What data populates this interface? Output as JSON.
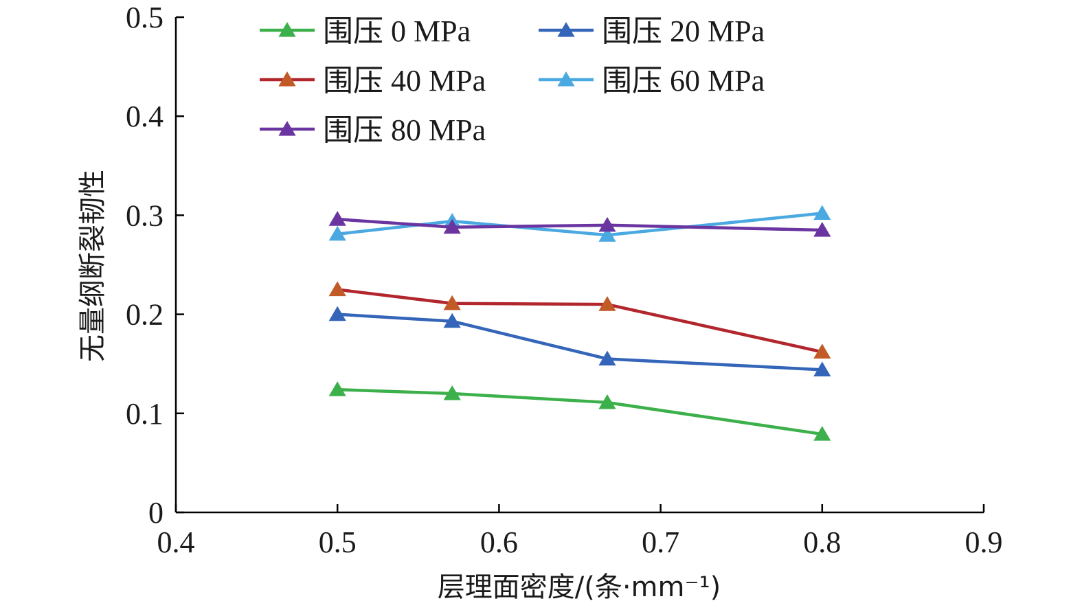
{
  "chart_data": {
    "type": "line",
    "xlabel": "层理面密度/(条·mm⁻¹)",
    "ylabel": "无量纲断裂韧性",
    "xlim": [
      0.4,
      0.9
    ],
    "ylim": [
      0,
      0.5
    ],
    "x_ticks": [
      "0.4",
      "0.5",
      "0.6",
      "0.7",
      "0.8",
      "0.9"
    ],
    "y_ticks": [
      "0",
      "0.1",
      "0.2",
      "0.3",
      "0.4",
      "0.5"
    ],
    "grid": false,
    "legend_position": "top",
    "x": [
      0.5,
      0.571,
      0.667,
      0.8
    ],
    "series": [
      {
        "name": "围压 0 MPa",
        "color": "#3cb04a",
        "marker": "triangle",
        "values": [
          0.124,
          0.12,
          0.111,
          0.079
        ]
      },
      {
        "name": "围压 20 MPa",
        "color": "#3465b8",
        "marker": "triangle",
        "values": [
          0.2,
          0.193,
          0.155,
          0.144
        ]
      },
      {
        "name": "围压 40 MPa",
        "color": "#b2272d",
        "marker_color": "#c25a28",
        "marker": "triangle",
        "values": [
          0.225,
          0.211,
          0.21,
          0.162
        ]
      },
      {
        "name": "围压 60 MPa",
        "color": "#4ba9e2",
        "marker": "triangle",
        "values": [
          0.281,
          0.294,
          0.28,
          0.302
        ]
      },
      {
        "name": "围压 80 MPa",
        "color": "#6a35a0",
        "marker": "triangle",
        "values": [
          0.296,
          0.288,
          0.29,
          0.285
        ]
      }
    ]
  }
}
